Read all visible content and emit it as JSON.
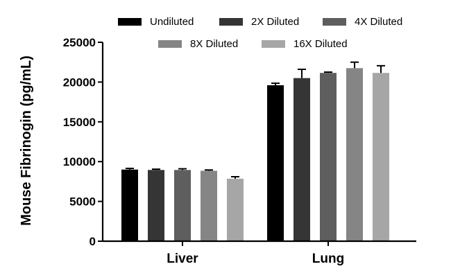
{
  "chart_data": {
    "type": "bar",
    "ylabel": "Mouse Fibrinogin (pg/mL)",
    "xlabel": "",
    "categories": [
      "Liver",
      "Lung"
    ],
    "ylim": [
      0,
      25000
    ],
    "yticks": [
      0,
      5000,
      10000,
      15000,
      20000,
      25000
    ],
    "legend_position": "top",
    "error_bars": true,
    "series": [
      {
        "name": "Undiluted",
        "color": "#000000",
        "values": [
          9000,
          19600
        ],
        "errors": [
          150,
          250
        ]
      },
      {
        "name": "2X Diluted",
        "color": "#353535",
        "values": [
          8950,
          20500
        ],
        "errors": [
          100,
          1100
        ]
      },
      {
        "name": "4X Diluted",
        "color": "#5e5e5e",
        "values": [
          8950,
          21150
        ],
        "errors": [
          150,
          100
        ]
      },
      {
        "name": "8X Diluted",
        "color": "#858585",
        "values": [
          8850,
          21750
        ],
        "errors": [
          100,
          750
        ]
      },
      {
        "name": "16X Diluted",
        "color": "#a6a6a6",
        "values": [
          7850,
          21150
        ],
        "errors": [
          250,
          900
        ]
      }
    ]
  }
}
